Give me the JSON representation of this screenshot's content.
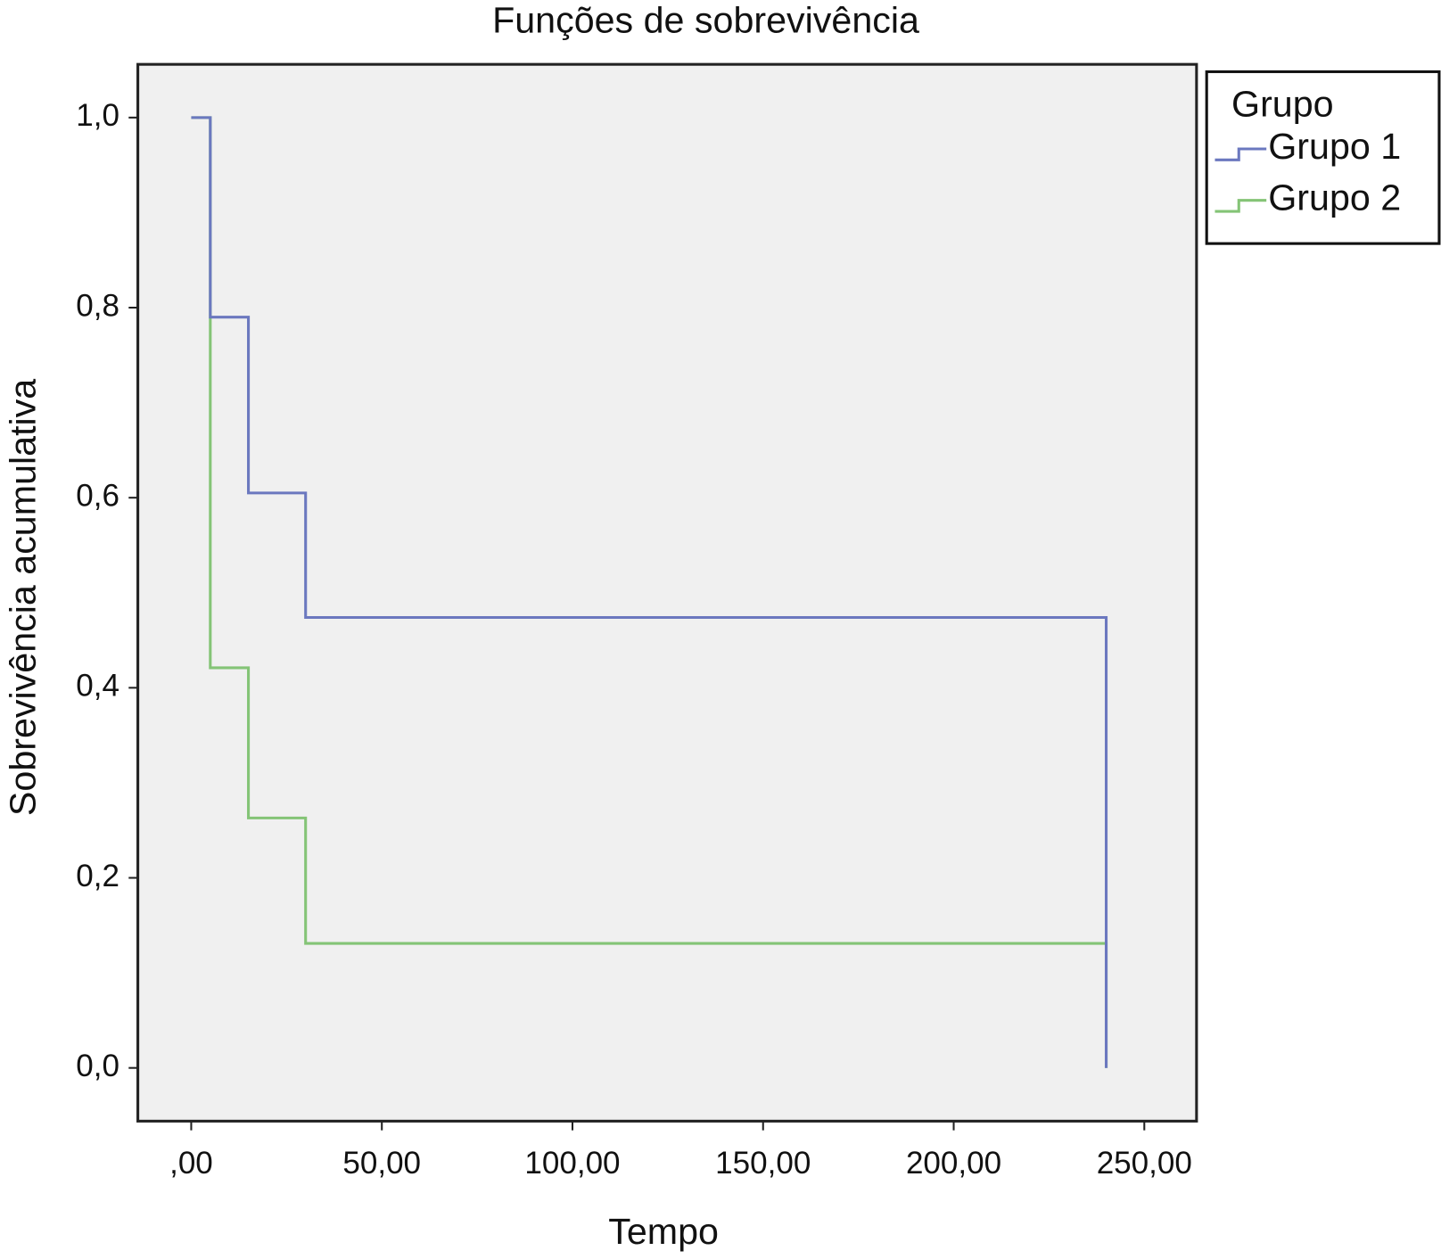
{
  "chart_data": {
    "type": "step",
    "title": "Funções de sobrevivência",
    "xlabel": "Tempo",
    "ylabel": "Sobrevivência acumulativa",
    "legend_title": "Grupo",
    "legend": "upper right outside",
    "xlim": [
      -14,
      263.7
    ],
    "ylim": [
      -0.056,
      1.056
    ],
    "xticks": [
      {
        "value": 0,
        "label": ",00"
      },
      {
        "value": 50,
        "label": "50,00"
      },
      {
        "value": 100,
        "label": "100,00"
      },
      {
        "value": 150,
        "label": "150,00"
      },
      {
        "value": 200,
        "label": "200,00"
      },
      {
        "value": 250,
        "label": "250,00"
      }
    ],
    "yticks": [
      {
        "value": 0,
        "label": "0,0"
      },
      {
        "value": 0.2,
        "label": "0,2"
      },
      {
        "value": 0.4,
        "label": "0,4"
      },
      {
        "value": 0.6,
        "label": "0,6"
      },
      {
        "value": 0.8,
        "label": "0,8"
      },
      {
        "value": 1,
        "label": "1,0"
      }
    ],
    "series": [
      {
        "name": "Grupo 1",
        "color": "#6b78bf",
        "x": [
          0,
          5,
          15,
          30,
          240
        ],
        "values": [
          1,
          0.79,
          0.605,
          0.474,
          0
        ]
      },
      {
        "name": "Grupo 2",
        "color": "#84c476",
        "x": [
          0,
          5,
          15,
          30,
          240
        ],
        "values": [
          1,
          0.421,
          0.263,
          0.131,
          0
        ]
      }
    ]
  }
}
